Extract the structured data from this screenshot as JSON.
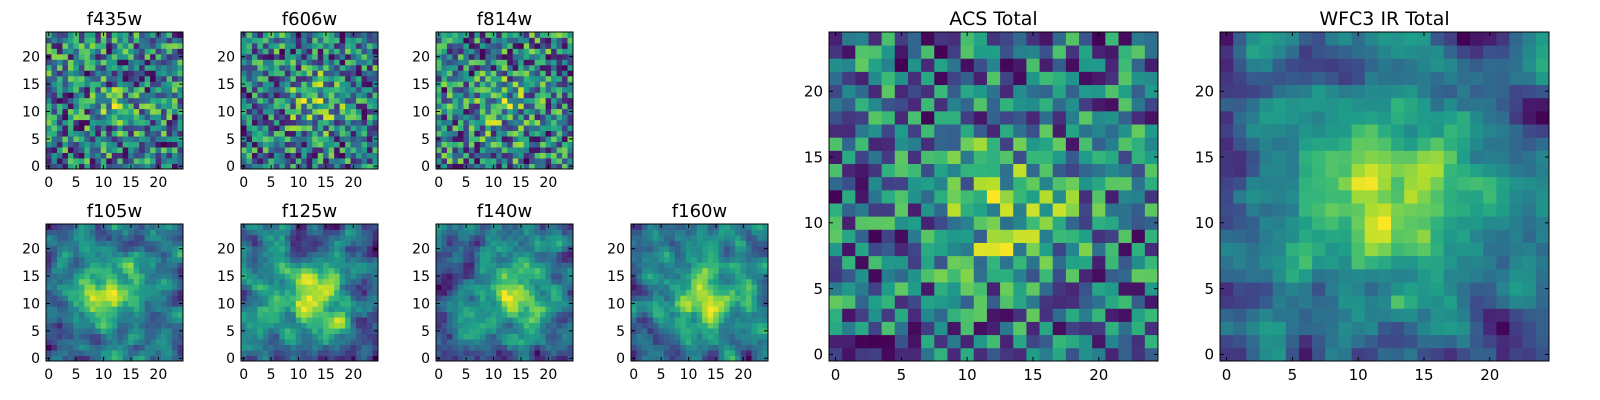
{
  "chart_data": [
    {
      "type": "heatmap",
      "title": "f435w",
      "colormap": "viridis",
      "grid": false,
      "xlim": [
        0,
        24
      ],
      "ylim": [
        0,
        24
      ],
      "xticks": [
        0,
        5,
        10,
        15,
        20
      ],
      "yticks": [
        0,
        5,
        10,
        15,
        20
      ],
      "shape": [
        25,
        25
      ],
      "seed": 11,
      "smooth": 0,
      "blob": {
        "cx": 13,
        "cy": 11,
        "r": 2.5,
        "amp": 0.3
      }
    },
    {
      "type": "heatmap",
      "title": "f606w",
      "colormap": "viridis",
      "grid": false,
      "xlim": [
        0,
        24
      ],
      "ylim": [
        0,
        24
      ],
      "xticks": [
        0,
        5,
        10,
        15,
        20
      ],
      "yticks": [
        0,
        5,
        10,
        15,
        20
      ],
      "shape": [
        25,
        25
      ],
      "seed": 23,
      "smooth": 0,
      "blob": {
        "cx": 13,
        "cy": 12,
        "r": 3.5,
        "amp": 0.35
      }
    },
    {
      "type": "heatmap",
      "title": "f814w",
      "colormap": "viridis",
      "grid": false,
      "xlim": [
        0,
        24
      ],
      "ylim": [
        0,
        24
      ],
      "xticks": [
        0,
        5,
        10,
        15,
        20
      ],
      "yticks": [
        0,
        5,
        10,
        15,
        20
      ],
      "shape": [
        25,
        25
      ],
      "seed": 37,
      "smooth": 0,
      "blob": {
        "cx": 12,
        "cy": 11,
        "r": 3.5,
        "amp": 0.25
      }
    },
    {
      "type": "heatmap",
      "title": "f105w",
      "colormap": "viridis",
      "grid": false,
      "xlim": [
        0,
        24
      ],
      "ylim": [
        0,
        24
      ],
      "xticks": [
        0,
        5,
        10,
        15,
        20
      ],
      "yticks": [
        0,
        5,
        10,
        15,
        20
      ],
      "shape": [
        25,
        25
      ],
      "seed": 41,
      "smooth": 1,
      "blob": {
        "cx": 11,
        "cy": 12,
        "r": 5,
        "amp": 0.45
      }
    },
    {
      "type": "heatmap",
      "title": "f125w",
      "colormap": "viridis",
      "grid": false,
      "xlim": [
        0,
        24
      ],
      "ylim": [
        0,
        24
      ],
      "xticks": [
        0,
        5,
        10,
        15,
        20
      ],
      "yticks": [
        0,
        5,
        10,
        15,
        20
      ],
      "shape": [
        25,
        25
      ],
      "seed": 53,
      "smooth": 1,
      "blob": {
        "cx": 13,
        "cy": 11,
        "r": 4,
        "amp": 0.45
      }
    },
    {
      "type": "heatmap",
      "title": "f140w",
      "colormap": "viridis",
      "grid": false,
      "xlim": [
        0,
        24
      ],
      "ylim": [
        0,
        24
      ],
      "xticks": [
        0,
        5,
        10,
        15,
        20
      ],
      "yticks": [
        0,
        5,
        10,
        15,
        20
      ],
      "shape": [
        25,
        25
      ],
      "seed": 67,
      "smooth": 1,
      "blob": {
        "cx": 14,
        "cy": 12,
        "r": 5,
        "amp": 0.4
      }
    },
    {
      "type": "heatmap",
      "title": "f160w",
      "colormap": "viridis",
      "grid": false,
      "xlim": [
        0,
        24
      ],
      "ylim": [
        0,
        24
      ],
      "xticks": [
        0,
        5,
        10,
        15,
        20
      ],
      "yticks": [
        0,
        5,
        10,
        15,
        20
      ],
      "shape": [
        25,
        25
      ],
      "seed": 79,
      "smooth": 1,
      "blob": {
        "cx": 13,
        "cy": 11,
        "r": 5,
        "amp": 0.45
      }
    },
    {
      "type": "heatmap",
      "title": "ACS Total",
      "colormap": "viridis",
      "grid": false,
      "xlim": [
        0,
        24
      ],
      "ylim": [
        0,
        24
      ],
      "xticks": [
        0,
        5,
        10,
        15,
        20
      ],
      "yticks": [
        0,
        5,
        10,
        15,
        20
      ],
      "shape": [
        25,
        25
      ],
      "seed": 97,
      "smooth": 0,
      "blob": {
        "cx": 13,
        "cy": 11,
        "r": 3.5,
        "amp": 0.45
      }
    },
    {
      "type": "heatmap",
      "title": "WFC3 IR Total",
      "colormap": "viridis",
      "grid": false,
      "xlim": [
        0,
        24
      ],
      "ylim": [
        0,
        24
      ],
      "xticks": [
        0,
        5,
        10,
        15,
        20
      ],
      "yticks": [
        0,
        5,
        10,
        15,
        20
      ],
      "shape": [
        25,
        25
      ],
      "seed": 113,
      "smooth": 1,
      "blob": {
        "cx": 12,
        "cy": 12,
        "r": 6,
        "amp": 0.5
      }
    }
  ]
}
